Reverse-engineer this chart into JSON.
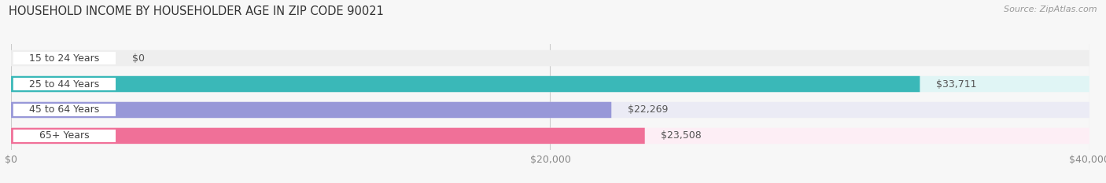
{
  "title": "HOUSEHOLD INCOME BY HOUSEHOLDER AGE IN ZIP CODE 90021",
  "source": "Source: ZipAtlas.com",
  "categories": [
    "15 to 24 Years",
    "25 to 44 Years",
    "45 to 64 Years",
    "65+ Years"
  ],
  "values": [
    0,
    33711,
    22269,
    23508
  ],
  "bar_colors": [
    "#c8a0c8",
    "#3ab8b8",
    "#9898d8",
    "#f07098"
  ],
  "background_colors": [
    "#eeeeee",
    "#e0f5f5",
    "#ebebf5",
    "#fdeef5"
  ],
  "max_value": 40000,
  "xtick_values": [
    0,
    20000,
    40000
  ],
  "xtick_labels": [
    "$0",
    "$20,000",
    "$40,000"
  ],
  "value_labels": [
    "$0",
    "$33,711",
    "$22,269",
    "$23,508"
  ],
  "title_fontsize": 10.5,
  "source_fontsize": 8,
  "label_fontsize": 9,
  "bar_height": 0.62,
  "fig_width": 14.06,
  "fig_height": 2.33
}
